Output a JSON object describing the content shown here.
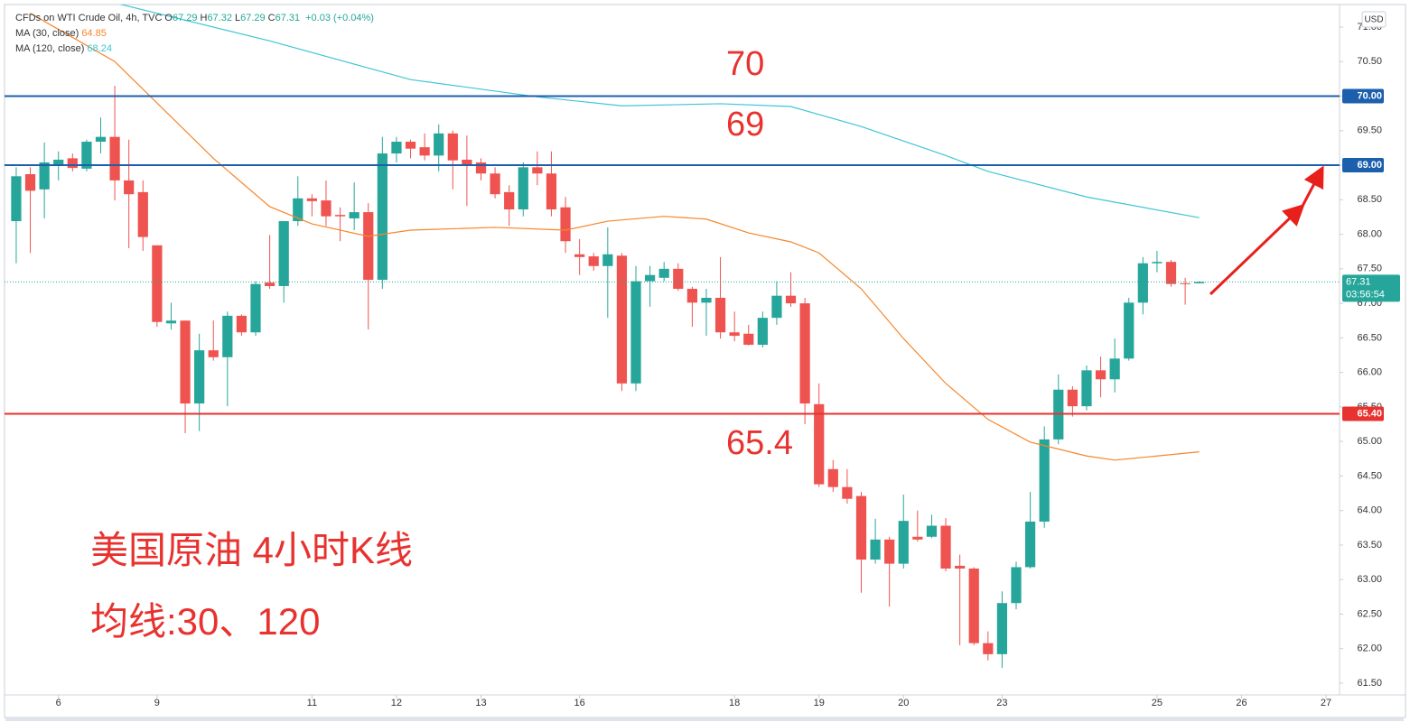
{
  "chart_data": {
    "type": "candlestick",
    "header": {
      "symbol": "CFDs on WTI Crude Oil, 4h, TVC",
      "ohlc": [
        {
          "label": "O",
          "value": 67.29
        },
        {
          "label": "H",
          "value": 67.32
        },
        {
          "label": "L",
          "value": 67.29
        },
        {
          "label": "C",
          "value": 67.31
        }
      ],
      "change": "+0.03 (+0.04%)"
    },
    "currency": "USD",
    "open": [
      68.19,
      68.87,
      68.65,
      68.99,
      69.1,
      68.95,
      69.34,
      69.41,
      68.78,
      68.61,
      67.84,
      66.71,
      66.75,
      65.55,
      66.32,
      66.22,
      66.82,
      66.58,
      67.3,
      67.25,
      68.19,
      68.52,
      68.49,
      68.28,
      68.23,
      68.32,
      67.34,
      69.17,
      69.34,
      69.26,
      69.14,
      69.46,
      69.08,
      69.04,
      68.88,
      68.61,
      68.36,
      68.97,
      68.88,
      68.39,
      67.71,
      67.68,
      67.54,
      67.69,
      65.84,
      67.32,
      67.37,
      67.5,
      67.21,
      67.01,
      67.08,
      66.58,
      66.56,
      66.4,
      66.79,
      67.11,
      67.0,
      65.54,
      64.6,
      64.34,
      64.21,
      63.29,
      63.58,
      63.23,
      63.62,
      63.62,
      63.78,
      63.2,
      63.16,
      62.08,
      61.92,
      62.66,
      63.18,
      63.84,
      65.03,
      65.75,
      65.51,
      66.03,
      65.9,
      66.2,
      67.01,
      67.58,
      67.6,
      67.29,
      67.29
    ],
    "high": [
      68.97,
      68.97,
      69.33,
      69.2,
      69.17,
      69.37,
      69.69,
      70.15,
      69.37,
      68.78,
      67.84,
      67.01,
      66.75,
      66.56,
      66.75,
      66.88,
      66.84,
      67.32,
      67.99,
      68.19,
      68.84,
      68.58,
      68.78,
      68.39,
      68.75,
      68.45,
      69.41,
      69.41,
      69.37,
      69.46,
      69.59,
      69.5,
      69.43,
      69.1,
      68.97,
      68.71,
      69.04,
      69.2,
      69.2,
      68.54,
      67.93,
      67.73,
      68.1,
      67.73,
      67.54,
      67.54,
      67.6,
      67.58,
      67.24,
      67.21,
      67.67,
      66.88,
      66.69,
      66.88,
      67.32,
      67.45,
      67.08,
      65.84,
      64.73,
      64.6,
      64.27,
      63.88,
      63.62,
      64.23,
      64.0,
      63.94,
      63.89,
      63.36,
      63.18,
      62.25,
      62.83,
      63.26,
      64.27,
      65.22,
      65.97,
      65.8,
      66.1,
      66.23,
      66.49,
      67.08,
      67.67,
      67.76,
      67.63,
      67.37,
      67.32
    ],
    "low": [
      67.58,
      67.73,
      68.23,
      68.78,
      68.91,
      68.91,
      69.17,
      68.49,
      67.8,
      67.76,
      66.66,
      66.62,
      65.12,
      65.15,
      66.17,
      65.51,
      66.53,
      66.53,
      67.21,
      67.01,
      68.12,
      68.26,
      68.12,
      67.9,
      68.06,
      66.62,
      67.21,
      69.04,
      69.1,
      69.07,
      68.91,
      68.65,
      68.41,
      68.78,
      68.52,
      68.12,
      68.26,
      68.71,
      68.26,
      67.73,
      67.41,
      67.47,
      66.79,
      65.73,
      65.73,
      66.95,
      67.32,
      67.18,
      66.66,
      66.53,
      66.49,
      66.45,
      66.39,
      66.36,
      66.69,
      66.95,
      65.25,
      64.34,
      64.27,
      64.1,
      62.81,
      63.23,
      62.61,
      63.16,
      63.55,
      63.6,
      63.12,
      62.05,
      62.05,
      61.83,
      61.72,
      62.57,
      63.16,
      63.75,
      64.96,
      65.36,
      65.45,
      65.64,
      65.71,
      66.17,
      66.84,
      67.45,
      67.24,
      66.98,
      67.29
    ],
    "close": [
      68.84,
      68.63,
      69.04,
      69.08,
      68.96,
      69.34,
      69.41,
      68.78,
      68.58,
      67.96,
      66.73,
      66.75,
      65.55,
      66.32,
      66.22,
      66.82,
      66.58,
      67.28,
      67.25,
      68.19,
      68.52,
      68.48,
      68.26,
      68.26,
      68.32,
      67.34,
      69.17,
      69.34,
      69.24,
      69.14,
      69.46,
      69.07,
      69.0,
      68.88,
      68.58,
      68.36,
      68.97,
      68.88,
      68.36,
      67.9,
      67.67,
      67.54,
      67.71,
      65.84,
      67.32,
      67.41,
      67.5,
      67.21,
      67.01,
      67.08,
      66.58,
      66.53,
      66.4,
      66.79,
      67.11,
      67.0,
      65.55,
      64.38,
      64.34,
      64.17,
      63.29,
      63.58,
      63.23,
      63.85,
      63.58,
      63.78,
      63.16,
      63.16,
      62.08,
      61.92,
      62.66,
      63.18,
      63.84,
      65.03,
      65.75,
      65.51,
      66.03,
      65.9,
      66.2,
      67.01,
      67.58,
      67.6,
      67.28,
      67.28,
      67.31
    ],
    "up_color": "#26a69a",
    "down_color": "#ef5350",
    "series": [
      {
        "name": "MA (30, close)",
        "last": 64.85,
        "color": "#f7862a",
        "x": [
          1,
          7,
          14,
          18,
          21,
          25,
          28,
          34,
          39,
          42,
          46,
          49,
          52,
          55,
          57,
          60,
          63,
          66,
          69,
          72,
          76,
          78,
          81,
          84
        ],
        "values": [
          71.2,
          70.5,
          69.1,
          68.4,
          68.15,
          67.97,
          68.06,
          68.1,
          68.06,
          68.19,
          68.26,
          68.22,
          68.02,
          67.89,
          67.73,
          67.21,
          66.49,
          65.84,
          65.32,
          64.99,
          64.79,
          64.73,
          64.79,
          64.85
        ]
      },
      {
        "name": "MA (120, close)",
        "last": 68.24,
        "color": "#3fc6d3",
        "x": [
          7,
          18,
          28,
          37,
          43,
          50,
          55,
          60,
          66,
          69,
          76,
          84
        ],
        "values": [
          71.35,
          70.8,
          70.24,
          69.99,
          69.86,
          69.89,
          69.85,
          69.56,
          69.14,
          68.91,
          68.54,
          68.24
        ]
      }
    ],
    "hlines": [
      {
        "value": 70,
        "label": "70.00",
        "color": "#1c5fad"
      },
      {
        "value": 69,
        "label": "69.00",
        "color": "#1c5fad"
      },
      {
        "value": 65.4,
        "label": "65.40",
        "color": "#e8322f"
      }
    ],
    "last_price": 67.31,
    "countdown": "03:56:54",
    "annotations": [
      "70",
      "69",
      "65.4",
      "美国原油 4小时K线",
      "均线:30、120"
    ],
    "xlim": [
      -0.83,
      93.96
    ],
    "xticks": [
      {
        "value": 3,
        "label": "6"
      },
      {
        "value": 10,
        "label": "9"
      },
      {
        "value": 21,
        "label": "11"
      },
      {
        "value": 27,
        "label": "12"
      },
      {
        "value": 33,
        "label": "13"
      },
      {
        "value": 40,
        "label": "16"
      },
      {
        "value": 51,
        "label": "18"
      },
      {
        "value": 57,
        "label": "19"
      },
      {
        "value": 63,
        "label": "20"
      },
      {
        "value": 70,
        "label": "23"
      },
      {
        "value": 81,
        "label": "25"
      },
      {
        "value": 87,
        "label": "26"
      },
      {
        "value": 93,
        "label": "27"
      }
    ],
    "ylim": [
      61.5,
      71
    ],
    "yticks": [
      {
        "value": 61.5,
        "label": "61.50"
      },
      {
        "value": 62,
        "label": "62.00"
      },
      {
        "value": 62.5,
        "label": "62.50"
      },
      {
        "value": 63,
        "label": "63.00"
      },
      {
        "value": 63.5,
        "label": "63.50"
      },
      {
        "value": 64,
        "label": "64.00"
      },
      {
        "value": 64.5,
        "label": "64.50"
      },
      {
        "value": 65,
        "label": "65.00"
      },
      {
        "value": 65.5,
        "label": "65.50"
      },
      {
        "value": 66,
        "label": "66.00"
      },
      {
        "value": 66.5,
        "label": "66.50"
      },
      {
        "value": 67,
        "label": "67.00"
      },
      {
        "value": 67.5,
        "label": "67.50"
      },
      {
        "value": 68,
        "label": "68.00"
      },
      {
        "value": 68.5,
        "label": "68.50"
      },
      {
        "value": 69,
        "label": "69.00"
      },
      {
        "value": 69.5,
        "label": "69.50"
      },
      {
        "value": 70,
        "label": "70.00"
      },
      {
        "value": 70.5,
        "label": "70.50"
      },
      {
        "value": 71,
        "label": "71.00"
      }
    ]
  }
}
